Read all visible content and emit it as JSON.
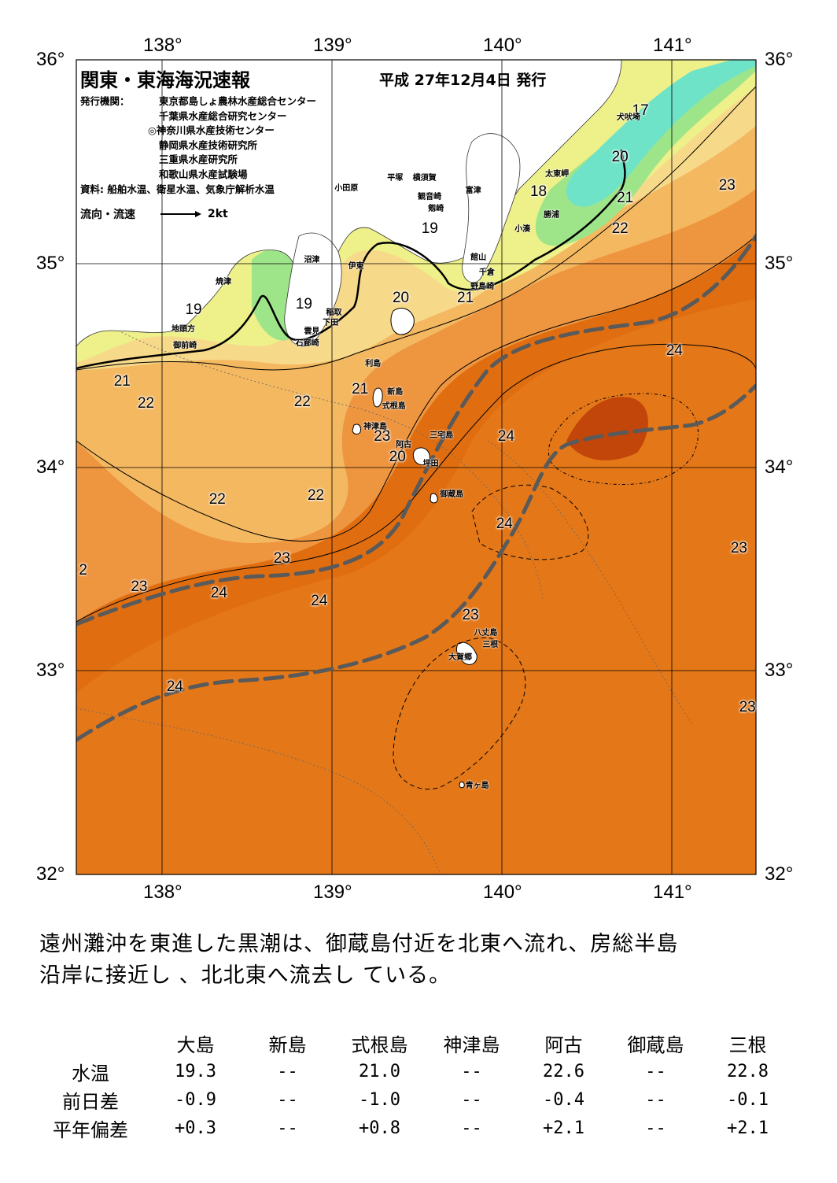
{
  "map": {
    "title": "関東・東海海況速報",
    "issue_date": "平成 27年12月4日 発行",
    "publisher_label": "発行機関：",
    "publishers": [
      "東京都島しょ農林水産総合センター",
      "千葉県水産総合研究センター",
      "◎神奈川県水産技術センター",
      "静岡県水産技術研究所",
      "三重県水産研究所",
      "和歌山県水産試験場"
    ],
    "source": "資料: 船舶水温、衛星水温、気象庁解析水温",
    "legend_label": "流向・流速",
    "legend_speed": "2kt",
    "lon_labels": [
      "138°",
      "139°",
      "140°",
      "141°"
    ],
    "lat_labels": [
      "36°",
      "35°",
      "34°",
      "33°",
      "32°"
    ],
    "colors": {
      "water_deep": "#e06e10",
      "water_warm": "#e67d1e",
      "water_mid": "#ee9540",
      "water_cool": "#f4b860",
      "water_cooler": "#f7d98a",
      "water_cold": "#eef089",
      "water_17": "#9ee58a",
      "water_coldest": "#6fe3c8",
      "water_hot": "#c2450a",
      "land": "#ffffff",
      "kuroshio": "#5a5a5a"
    },
    "temperature_labels": [
      {
        "text": "17",
        "lon": 140.82,
        "lat": 35.75
      },
      {
        "text": "20",
        "lon": 140.7,
        "lat": 35.52
      },
      {
        "text": "23",
        "lon": 141.33,
        "lat": 35.38
      },
      {
        "text": "18",
        "lon": 140.22,
        "lat": 35.35
      },
      {
        "text": "21",
        "lon": 140.73,
        "lat": 35.32
      },
      {
        "text": "22",
        "lon": 140.7,
        "lat": 35.17
      },
      {
        "text": "19",
        "lon": 139.58,
        "lat": 35.17
      },
      {
        "text": "20",
        "lon": 139.41,
        "lat": 34.83
      },
      {
        "text": "21",
        "lon": 139.79,
        "lat": 34.83
      },
      {
        "text": "19",
        "lon": 138.84,
        "lat": 34.8
      },
      {
        "text": "19",
        "lon": 138.19,
        "lat": 34.77
      },
      {
        "text": "24",
        "lon": 141.02,
        "lat": 34.57
      },
      {
        "text": "21",
        "lon": 137.77,
        "lat": 34.42
      },
      {
        "text": "21",
        "lon": 139.17,
        "lat": 34.38
      },
      {
        "text": "22",
        "lon": 137.91,
        "lat": 34.31
      },
      {
        "text": "22",
        "lon": 138.83,
        "lat": 34.32
      },
      {
        "text": "23",
        "lon": 139.3,
        "lat": 34.15
      },
      {
        "text": "24",
        "lon": 140.03,
        "lat": 34.15
      },
      {
        "text": "20",
        "lon": 139.39,
        "lat": 34.05
      },
      {
        "text": "22",
        "lon": 138.33,
        "lat": 33.84
      },
      {
        "text": "22",
        "lon": 138.91,
        "lat": 33.86
      },
      {
        "text": "24",
        "lon": 140.02,
        "lat": 33.72
      },
      {
        "text": "23",
        "lon": 141.4,
        "lat": 33.6
      },
      {
        "text": "23",
        "lon": 138.71,
        "lat": 33.55
      },
      {
        "text": "2",
        "lon": 137.54,
        "lat": 33.49
      },
      {
        "text": "23",
        "lon": 137.87,
        "lat": 33.41
      },
      {
        "text": "24",
        "lon": 138.34,
        "lat": 33.38
      },
      {
        "text": "24",
        "lon": 138.93,
        "lat": 33.34
      },
      {
        "text": "23",
        "lon": 139.82,
        "lat": 33.27
      },
      {
        "text": "24",
        "lon": 138.08,
        "lat": 32.92
      },
      {
        "text": "23",
        "lon": 141.45,
        "lat": 32.82
      }
    ],
    "place_labels": [
      {
        "text": "犬吠埼",
        "lon": 140.68,
        "lat": 35.73
      },
      {
        "text": "平塚",
        "lon": 139.33,
        "lat": 35.43
      },
      {
        "text": "横須賀",
        "lon": 139.48,
        "lat": 35.43
      },
      {
        "text": "小田原",
        "lon": 139.02,
        "lat": 35.38
      },
      {
        "text": "富津",
        "lon": 139.79,
        "lat": 35.37
      },
      {
        "text": "太東岬",
        "lon": 140.26,
        "lat": 35.45
      },
      {
        "text": "観音崎",
        "lon": 139.51,
        "lat": 35.34
      },
      {
        "text": "剱崎",
        "lon": 139.57,
        "lat": 35.28
      },
      {
        "text": "勝浦",
        "lon": 140.25,
        "lat": 35.25
      },
      {
        "text": "小湊",
        "lon": 140.08,
        "lat": 35.18
      },
      {
        "text": "沼津",
        "lon": 138.84,
        "lat": 35.03
      },
      {
        "text": "館山",
        "lon": 139.82,
        "lat": 35.04
      },
      {
        "text": "伊東",
        "lon": 139.1,
        "lat": 35.0
      },
      {
        "text": "千倉",
        "lon": 139.87,
        "lat": 34.97
      },
      {
        "text": "焼津",
        "lon": 138.32,
        "lat": 34.92
      },
      {
        "text": "野島崎",
        "lon": 139.82,
        "lat": 34.9
      },
      {
        "text": "稲取",
        "lon": 138.97,
        "lat": 34.77
      },
      {
        "text": "下田",
        "lon": 138.95,
        "lat": 34.72
      },
      {
        "text": "地頭方",
        "lon": 138.06,
        "lat": 34.69
      },
      {
        "text": "雲見",
        "lon": 138.84,
        "lat": 34.68
      },
      {
        "text": "石廊崎",
        "lon": 138.79,
        "lat": 34.62
      },
      {
        "text": "御前崎",
        "lon": 138.07,
        "lat": 34.61
      },
      {
        "text": "利島",
        "lon": 139.2,
        "lat": 34.52
      },
      {
        "text": "新島",
        "lon": 139.33,
        "lat": 34.38
      },
      {
        "text": "式根島",
        "lon": 139.3,
        "lat": 34.31
      },
      {
        "text": "神津島",
        "lon": 139.19,
        "lat": 34.21
      },
      {
        "text": "三宅島",
        "lon": 139.58,
        "lat": 34.17
      },
      {
        "text": "阿古",
        "lon": 139.38,
        "lat": 34.12
      },
      {
        "text": "坪田",
        "lon": 139.54,
        "lat": 34.03
      },
      {
        "text": "御蔵島",
        "lon": 139.64,
        "lat": 33.88
      },
      {
        "text": "八丈島",
        "lon": 139.84,
        "lat": 33.2
      },
      {
        "text": "三根",
        "lon": 139.89,
        "lat": 33.14
      },
      {
        "text": "大賀郷",
        "lon": 139.69,
        "lat": 33.08
      },
      {
        "text": "青ヶ島",
        "lon": 139.79,
        "lat": 32.45
      }
    ]
  },
  "summary": [
    "遠州灘沖を東進した黒潮は、御蔵島付近を北東へ流れ、房総半島",
    "沿岸に接近し 、北北東へ流去し ている。"
  ],
  "table": {
    "columns": [
      "大島",
      "新島",
      "式根島",
      "神津島",
      "阿古",
      "御蔵島",
      "三根"
    ],
    "rows": [
      {
        "label": "水温",
        "values": [
          "19.3",
          "--",
          "21.0",
          "--",
          "22.6",
          "--",
          "22.8"
        ]
      },
      {
        "label": "前日差",
        "values": [
          "-0.9",
          "--",
          "-1.0",
          "--",
          "-0.4",
          "--",
          "-0.1"
        ]
      },
      {
        "label": "平年偏差",
        "values": [
          "+0.3",
          "--",
          "+0.8",
          "--",
          "+2.1",
          "--",
          "+2.1"
        ]
      }
    ]
  }
}
